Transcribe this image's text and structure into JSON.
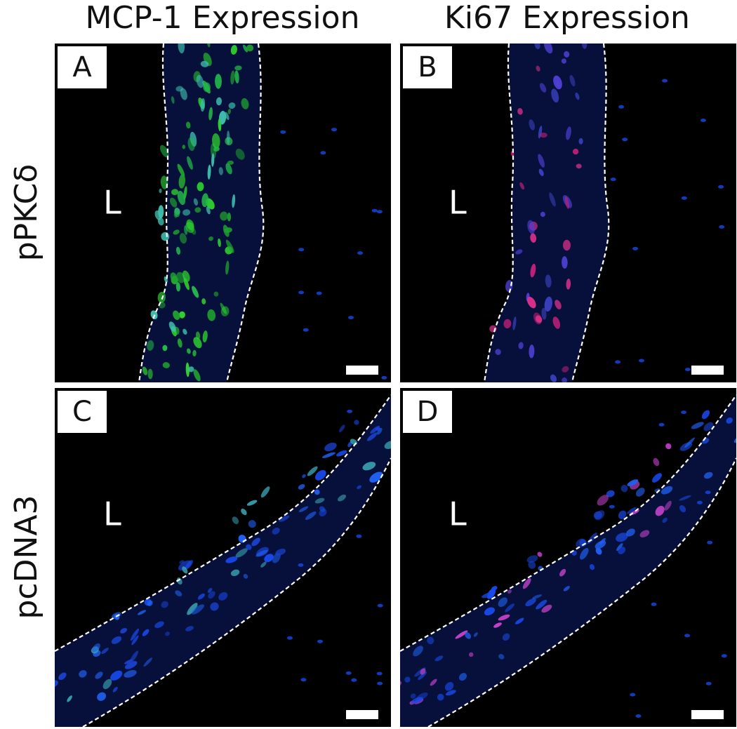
{
  "column_headers": [
    "MCP-1 Expression",
    "Ki67 Expression"
  ],
  "row_labels": [
    "pPKCδ",
    "pcDNA3"
  ],
  "panels": [
    {
      "label": "A",
      "lumen_label": "L"
    },
    {
      "label": "B",
      "lumen_label": "L"
    },
    {
      "label": "C",
      "lumen_label": "L"
    },
    {
      "label": "D",
      "lumen_label": "L"
    }
  ]
}
